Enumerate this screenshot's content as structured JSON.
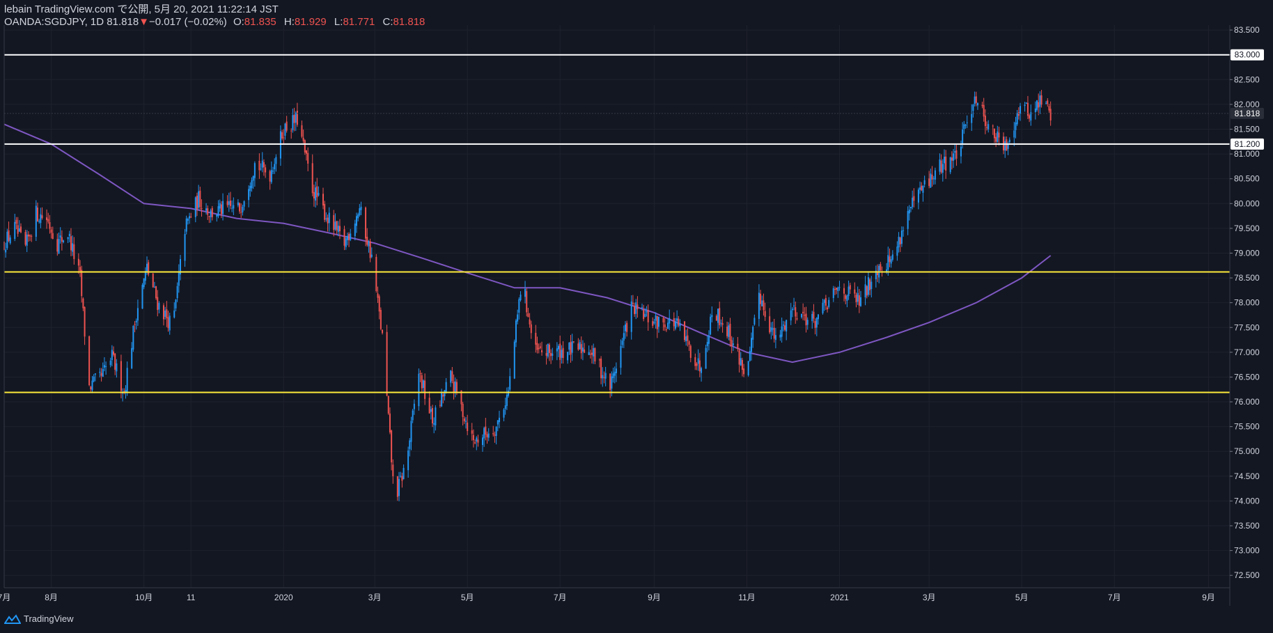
{
  "header": {
    "line1": "lebain TradingView.com で公開, 5月 20, 2021 11:22:14 JST",
    "symbol": "OANDA:SGDJPY, 1D",
    "last": "81.818",
    "change": "−0.017 (−0.02%)",
    "o_label": "O:",
    "o": "81.835",
    "h_label": "H:",
    "h": "81.929",
    "l_label": "L:",
    "l": "81.771",
    "c_label": "C:",
    "c": "81.818"
  },
  "footer": {
    "brand": "TradingView",
    "icon": "tradingview-logo-icon"
  },
  "colors": {
    "background": "#131722",
    "up": "#2196f3",
    "down": "#ef5350",
    "ma": "#7e57c2",
    "support_resistance_white": "#ffffff",
    "support_resistance_yellow": "#ffeb3b",
    "text": "#d1d4dc"
  },
  "chart_data": {
    "type": "candlestick",
    "symbol": "OANDA:SGDJPY",
    "timeframe": "1D",
    "ylim": [
      72.25,
      83.6
    ],
    "y_ticks": [
      "72.500",
      "73.000",
      "73.500",
      "74.000",
      "74.500",
      "75.000",
      "75.500",
      "76.000",
      "76.500",
      "77.000",
      "77.500",
      "78.000",
      "78.500",
      "79.000",
      "79.500",
      "80.000",
      "80.500",
      "81.000",
      "81.500",
      "82.000",
      "82.500",
      "83.000",
      "83.500"
    ],
    "x_ticks": [
      "7月",
      "8月",
      "10月",
      "11",
      "2020",
      "3月",
      "5月",
      "7月",
      "9月",
      "11月",
      "2021",
      "3月",
      "5月",
      "7月",
      "9月"
    ],
    "x_tick_dates": [
      "2019-07-01",
      "2019-08-01",
      "2019-10-01",
      "2019-11-01",
      "2020-01-01",
      "2020-03-01",
      "2020-05-01",
      "2020-07-01",
      "2020-09-01",
      "2020-11-01",
      "2021-01-01",
      "2021-03-01",
      "2021-05-01",
      "2021-07-01",
      "2021-09-01"
    ],
    "xlim_dates": [
      "2019-07-01",
      "2021-09-15"
    ],
    "price_keypoints": [
      {
        "date": "2019-07-01",
        "price": 79.2
      },
      {
        "date": "2019-07-08",
        "price": 79.5
      },
      {
        "date": "2019-07-15",
        "price": 79.1
      },
      {
        "date": "2019-07-22",
        "price": 79.8
      },
      {
        "date": "2019-07-29",
        "price": 79.7
      },
      {
        "date": "2019-08-05",
        "price": 79.2
      },
      {
        "date": "2019-08-12",
        "price": 79.4
      },
      {
        "date": "2019-08-20",
        "price": 78.5
      },
      {
        "date": "2019-08-26",
        "price": 76.3
      },
      {
        "date": "2019-09-03",
        "price": 76.5
      },
      {
        "date": "2019-09-10",
        "price": 76.9
      },
      {
        "date": "2019-09-18",
        "price": 76.2
      },
      {
        "date": "2019-09-26",
        "price": 77.8
      },
      {
        "date": "2019-10-03",
        "price": 78.7
      },
      {
        "date": "2019-10-10",
        "price": 78.0
      },
      {
        "date": "2019-10-20",
        "price": 77.5
      },
      {
        "date": "2019-10-28",
        "price": 79.5
      },
      {
        "date": "2019-11-06",
        "price": 80.1
      },
      {
        "date": "2019-11-14",
        "price": 79.8
      },
      {
        "date": "2019-11-24",
        "price": 79.9
      },
      {
        "date": "2019-12-03",
        "price": 79.9
      },
      {
        "date": "2019-12-13",
        "price": 80.8
      },
      {
        "date": "2019-12-23",
        "price": 80.6
      },
      {
        "date": "2020-01-01",
        "price": 81.5
      },
      {
        "date": "2020-01-10",
        "price": 81.7
      },
      {
        "date": "2020-01-20",
        "price": 80.3
      },
      {
        "date": "2020-01-30",
        "price": 79.7
      },
      {
        "date": "2020-02-10",
        "price": 79.2
      },
      {
        "date": "2020-02-20",
        "price": 79.9
      },
      {
        "date": "2020-02-28",
        "price": 78.9
      },
      {
        "date": "2020-03-06",
        "price": 77.3
      },
      {
        "date": "2020-03-14",
        "price": 74.0
      },
      {
        "date": "2020-03-22",
        "price": 74.8
      },
      {
        "date": "2020-03-30",
        "price": 76.6
      },
      {
        "date": "2020-04-08",
        "price": 75.6
      },
      {
        "date": "2020-04-20",
        "price": 76.5
      },
      {
        "date": "2020-05-05",
        "price": 75.2
      },
      {
        "date": "2020-05-20",
        "price": 75.5
      },
      {
        "date": "2020-05-28",
        "price": 76.2
      },
      {
        "date": "2020-06-06",
        "price": 78.5
      },
      {
        "date": "2020-06-14",
        "price": 77.0
      },
      {
        "date": "2020-06-28",
        "price": 77.0
      },
      {
        "date": "2020-07-20",
        "price": 77.1
      },
      {
        "date": "2020-08-03",
        "price": 76.3
      },
      {
        "date": "2020-08-17",
        "price": 77.9
      },
      {
        "date": "2020-09-01",
        "price": 77.6
      },
      {
        "date": "2020-09-15",
        "price": 77.6
      },
      {
        "date": "2020-10-01",
        "price": 76.7
      },
      {
        "date": "2020-10-10",
        "price": 77.9
      },
      {
        "date": "2020-10-20",
        "price": 77.4
      },
      {
        "date": "2020-11-01",
        "price": 76.5
      },
      {
        "date": "2020-11-09",
        "price": 78.2
      },
      {
        "date": "2020-11-20",
        "price": 77.2
      },
      {
        "date": "2020-12-01",
        "price": 77.9
      },
      {
        "date": "2020-12-15",
        "price": 77.6
      },
      {
        "date": "2021-01-01",
        "price": 78.3
      },
      {
        "date": "2021-01-15",
        "price": 78.0
      },
      {
        "date": "2021-01-25",
        "price": 78.7
      },
      {
        "date": "2021-02-05",
        "price": 78.9
      },
      {
        "date": "2021-02-15",
        "price": 79.8
      },
      {
        "date": "2021-02-25",
        "price": 80.3
      },
      {
        "date": "2021-03-10",
        "price": 80.8
      },
      {
        "date": "2021-03-20",
        "price": 81.0
      },
      {
        "date": "2021-03-31",
        "price": 82.2
      },
      {
        "date": "2021-04-10",
        "price": 81.5
      },
      {
        "date": "2021-04-20",
        "price": 81.1
      },
      {
        "date": "2021-04-30",
        "price": 82.0
      },
      {
        "date": "2021-05-07",
        "price": 81.8
      },
      {
        "date": "2021-05-14",
        "price": 82.1
      },
      {
        "date": "2021-05-20",
        "price": 81.818
      }
    ],
    "moving_average": [
      {
        "date": "2019-07-01",
        "value": 81.6
      },
      {
        "date": "2019-08-01",
        "value": 81.2
      },
      {
        "date": "2019-09-01",
        "value": 80.6
      },
      {
        "date": "2019-10-01",
        "value": 80.0
      },
      {
        "date": "2019-11-01",
        "value": 79.9
      },
      {
        "date": "2019-12-01",
        "value": 79.7
      },
      {
        "date": "2020-01-01",
        "value": 79.6
      },
      {
        "date": "2020-02-01",
        "value": 79.4
      },
      {
        "date": "2020-03-01",
        "value": 79.2
      },
      {
        "date": "2020-04-01",
        "value": 78.9
      },
      {
        "date": "2020-05-01",
        "value": 78.6
      },
      {
        "date": "2020-06-01",
        "value": 78.3
      },
      {
        "date": "2020-07-01",
        "value": 78.3
      },
      {
        "date": "2020-08-01",
        "value": 78.1
      },
      {
        "date": "2020-09-01",
        "value": 77.8
      },
      {
        "date": "2020-10-01",
        "value": 77.4
      },
      {
        "date": "2020-11-01",
        "value": 77.0
      },
      {
        "date": "2020-12-01",
        "value": 76.8
      },
      {
        "date": "2021-01-01",
        "value": 77.0
      },
      {
        "date": "2021-02-01",
        "value": 77.3
      },
      {
        "date": "2021-03-01",
        "value": 77.6
      },
      {
        "date": "2021-04-01",
        "value": 78.0
      },
      {
        "date": "2021-05-01",
        "value": 78.5
      },
      {
        "date": "2021-05-20",
        "value": 78.95
      }
    ],
    "horizontal_lines": [
      {
        "price": 83.0,
        "label": "83.000",
        "color": "#ffffff"
      },
      {
        "price": 81.2,
        "label": "81.200",
        "color": "#ffffff"
      },
      {
        "price": 78.62,
        "color": "#ffeb3b"
      },
      {
        "price": 76.19,
        "color": "#ffeb3b"
      }
    ],
    "last_price_label": "81.818",
    "grid": true
  }
}
